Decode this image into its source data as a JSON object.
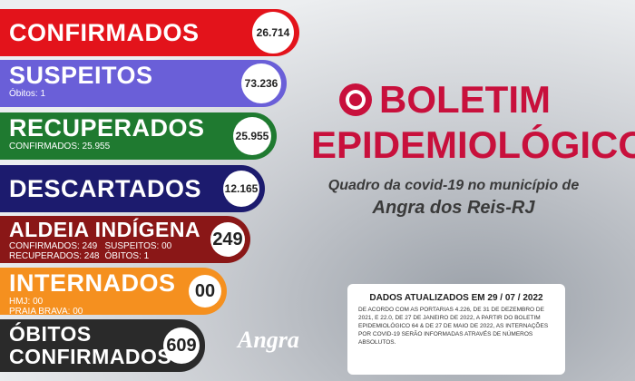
{
  "rows": [
    {
      "label": "CONFIRMADOS",
      "value": "26.714"
    },
    {
      "label": "SUSPEITOS",
      "value": "73.236",
      "details": [
        "Óbitos: 1"
      ]
    },
    {
      "label": "RECUPERADOS",
      "value": "25.955",
      "details": [
        "CONFIRMADOS: 25.955"
      ]
    },
    {
      "label": "DESCARTADOS",
      "value": "12.165"
    },
    {
      "label": "ALDEIA INDÍGENA",
      "value": "249",
      "details": [
        "CONFIRMADOS: 249",
        "SUSPEITOS: 00",
        "RECUPERADOS: 248",
        "ÓBITOS: 1"
      ]
    },
    {
      "label": "INTERNADOS",
      "value": "00",
      "details": [
        "HMJ: 00",
        "PRAIA BRAVA: 00"
      ]
    },
    {
      "label": "ÓBITOS CONFIRMADOS",
      "value": "609"
    }
  ],
  "header": {
    "title_line1": "BOLETIM",
    "title_line2": "EPIDEMIOLÓGICO",
    "subtitle_line1": "Quadro da covid-19 no município de",
    "subtitle_line2": "Angra dos Reis-RJ"
  },
  "note": {
    "updated": "DADOS ATUALIZADOS EM  29 / 07 / 2022",
    "text": "DE ACORDO COM AS PORTARIAS 4.226, DE 31 DE DEZEMBRO DE 2021, E 22.0, DE 27 DE JANEIRO DE 2022, A PARTIR DO BOLETIM EPIDEMIOLÓGICO 64 & DE 27 DE MAIO DE 2022, AS INTERNAÇÕES POR COVID-19 SERÃO INFORMADAS ATRAVÉS DE NÚMEROS ABSOLUTOS."
  },
  "logo": "Angra"
}
